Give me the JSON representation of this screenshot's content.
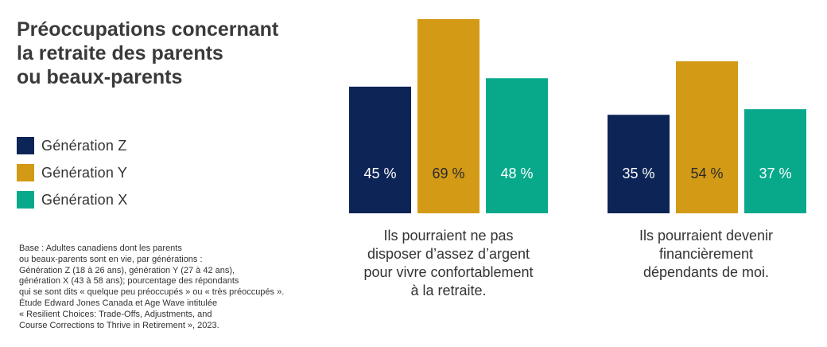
{
  "title_lines": [
    "Préoccupations concernant",
    "la retraite des parents",
    "ou beaux-parents"
  ],
  "legend": [
    {
      "label": "Génération Z",
      "color": "#0d2456"
    },
    {
      "label": "Génération Y",
      "color": "#d39a16"
    },
    {
      "label": "Génération X",
      "color": "#08a98b"
    }
  ],
  "source_lines": [
    "Base : Adultes canadiens dont les parents",
    "ou beaux-parents sont en vie, par générations :",
    "Génération Z (18 à 26 ans), génération Y (27 à 42 ans),",
    "génération X (43 à 58 ans); pourcentage des répondants",
    "qui se sont dits « quelque peu préoccupés » ou « très préoccupés ».",
    "Étude Edward Jones Canada et Age Wave intitulée",
    "« Resilient Choices: Trade-Offs, Adjustments, and",
    "Course Corrections to Thrive in Retirement », 2023."
  ],
  "chart_data": {
    "type": "bar",
    "categories": [
      "Ils pourraient ne pas disposer d’assez d’argent pour vivre confortablement à la retraite.",
      "Ils pourraient devenir financièrement dépendants de moi."
    ],
    "category_lines": [
      [
        "Ils pourraient ne pas",
        "disposer d’assez d’argent",
        "pour vivre confortablement",
        "à la retraite."
      ],
      [
        "Ils pourraient devenir",
        "financièrement",
        "dépendants de moi."
      ]
    ],
    "series": [
      {
        "name": "Génération Z",
        "values": [
          45,
          35
        ],
        "labels": [
          "45 %",
          "35 %"
        ],
        "color": "#0d2456"
      },
      {
        "name": "Génération Y",
        "values": [
          69,
          54
        ],
        "labels": [
          "69 %",
          "54 %"
        ],
        "color": "#d39a16"
      },
      {
        "name": "Génération X",
        "values": [
          48,
          37
        ],
        "labels": [
          "48 %",
          "37 %"
        ],
        "color": "#08a98b"
      }
    ],
    "ylim": [
      0,
      69
    ],
    "grid": false,
    "legend_position": "left"
  }
}
